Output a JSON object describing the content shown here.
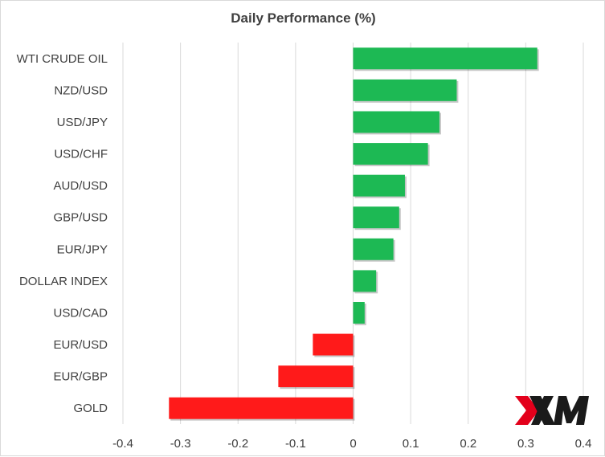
{
  "chart_data": {
    "type": "bar",
    "orientation": "horizontal",
    "title": "Daily Performance  (%)",
    "categories": [
      "WTI CRUDE OIL",
      "NZD/USD",
      "USD/JPY",
      "USD/CHF",
      "AUD/USD",
      "GBP/USD",
      "EUR/JPY",
      "DOLLAR INDEX",
      "USD/CAD",
      "EUR/USD",
      "EUR/GBP",
      "GOLD"
    ],
    "values": [
      0.32,
      0.18,
      0.15,
      0.13,
      0.09,
      0.08,
      0.07,
      0.04,
      0.02,
      -0.07,
      -0.13,
      -0.32
    ],
    "xlim": [
      -0.4,
      0.4
    ],
    "xticks": [
      "-0.4",
      "-0.3",
      "-0.2",
      "-0.1",
      "0",
      "0.1",
      "0.2",
      "0.3",
      "0.4"
    ],
    "grid": "vertical",
    "legend": "none",
    "colors": {
      "positive": "#1db954",
      "negative": "#ff1a1a",
      "grid": "#d9d9d9",
      "text": "#404040"
    }
  },
  "logo": {
    "text": "XM",
    "icon": "xm-logo-icon",
    "colors": {
      "red": "#e3001b",
      "dark": "#1a1a1a"
    }
  }
}
